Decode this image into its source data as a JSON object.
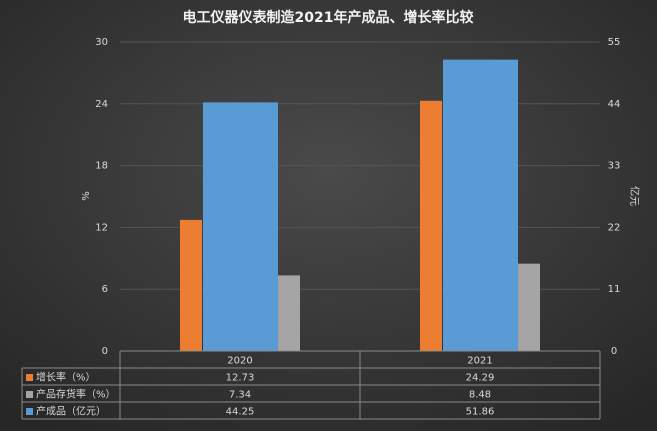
{
  "chart_data": {
    "type": "bar",
    "title": "电工仪器仪表制造2021年产成品、增长率比较",
    "y_label": "%",
    "y2_label": "亿元",
    "categories": [
      "2020",
      "2021"
    ],
    "series": [
      {
        "name": "增长率（%）",
        "color": "#ed7d31",
        "values": [
          12.73,
          24.29
        ]
      },
      {
        "name": "产品存货率（%）",
        "color": "#a5a5a5",
        "values": [
          7.34,
          8.48
        ]
      },
      {
        "name": "产成品（亿元）",
        "color": "#5b9bd5",
        "values": [
          44.25,
          51.86
        ],
        "axis": "y2"
      }
    ],
    "ylim": [
      0,
      30
    ],
    "yticks": [
      0,
      6,
      12,
      18,
      24,
      30
    ],
    "y2lim": [
      0,
      55
    ],
    "y2ticks": [
      0,
      11,
      22,
      33,
      44,
      55
    ],
    "grid": true
  }
}
